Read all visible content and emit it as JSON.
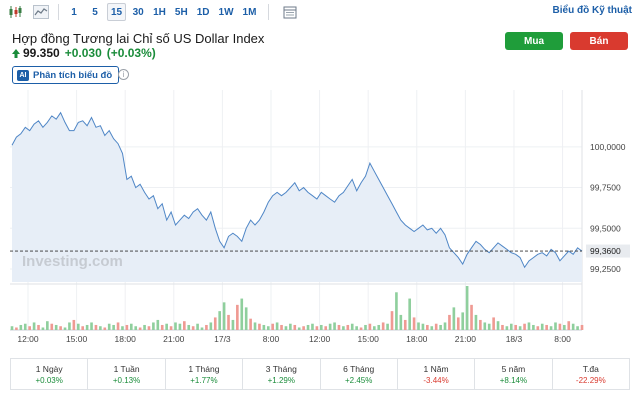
{
  "toolbar": {
    "timeframes": [
      "1",
      "5",
      "15",
      "30",
      "1H",
      "5H",
      "1D",
      "1W",
      "1M"
    ],
    "active_timeframe": "15",
    "tech_chart_link": "Biểu đồ Kỹ thuật"
  },
  "header": {
    "title": "Hợp đồng Tương lai Chỉ số US Dollar Index",
    "price": "99.350",
    "change": "+0.030",
    "change_pct": "(+0.03%)",
    "buy_label": "Mua",
    "sell_label": "Bán",
    "analysis_badge": "AI",
    "analysis_label": "Phân tích biểu đồ",
    "info_glyph": "i"
  },
  "colors": {
    "up": "#1a8c3a",
    "down": "#d93a2f",
    "line": "#4f86c6",
    "area": "#e7eef7",
    "accent": "#1d5fa8"
  },
  "chart_data": {
    "type": "area",
    "watermark": "Investing.com",
    "x_tick_labels": [
      "12:00",
      "15:00",
      "18:00",
      "21:00",
      "17/3",
      "8:00",
      "12:00",
      "15:00",
      "18:00",
      "21:00",
      "18/3",
      "8:00"
    ],
    "y_tick_labels": [
      "100,0000",
      "99,7500",
      "99,5000",
      "99,2500"
    ],
    "ylim": [
      99.17,
      100.3
    ],
    "last_value_label": "99,3600",
    "last_value": 99.36,
    "grid": true,
    "price": [
      100.01,
      100.06,
      100.08,
      100.12,
      100.1,
      100.14,
      100.16,
      100.12,
      100.15,
      100.19,
      100.17,
      100.21,
      100.15,
      100.1,
      100.1,
      100.15,
      100.16,
      100.13,
      100.18,
      100.12,
      100.13,
      100.07,
      100.1,
      100.05,
      100.02,
      99.96,
      99.8,
      99.82,
      99.75,
      99.77,
      99.72,
      99.68,
      99.7,
      99.62,
      99.65,
      99.55,
      99.6,
      99.52,
      99.55,
      99.58,
      99.56,
      99.6,
      99.62,
      99.58,
      99.55,
      99.6,
      99.5,
      99.42,
      99.38,
      99.45,
      99.47,
      99.45,
      99.42,
      99.5,
      99.55,
      99.52,
      99.55,
      99.6,
      99.66,
      99.7,
      99.72,
      99.7,
      99.72,
      99.75,
      99.78,
      99.73,
      99.75,
      99.72,
      99.7,
      99.68,
      99.72,
      99.7,
      99.68,
      99.66,
      99.7,
      99.72,
      99.76,
      99.8,
      99.73,
      99.78,
      99.82,
      99.9,
      99.85,
      99.8,
      99.75,
      99.7,
      99.65,
      99.6,
      99.55,
      99.52,
      99.5,
      99.48,
      99.5,
      99.52,
      99.49,
      99.5,
      99.47,
      99.5,
      99.46,
      99.38,
      99.35,
      99.32,
      99.28,
      99.34,
      99.38,
      99.42,
      99.4,
      99.37,
      99.35,
      99.38,
      99.41,
      99.39,
      99.37,
      99.35,
      99.34,
      99.32,
      99.26,
      99.3,
      99.32,
      99.34,
      99.35,
      99.33,
      99.37,
      99.35,
      99.3,
      99.33,
      99.36,
      99.34,
      99.38,
      99.36
    ],
    "volume": [
      3,
      2,
      4,
      5,
      3,
      6,
      4,
      2,
      7,
      5,
      4,
      3,
      2,
      6,
      8,
      5,
      3,
      4,
      6,
      4,
      3,
      2,
      5,
      4,
      6,
      3,
      4,
      5,
      3,
      2,
      4,
      3,
      6,
      8,
      4,
      5,
      3,
      6,
      5,
      7,
      4,
      3,
      5,
      2,
      4,
      6,
      10,
      15,
      22,
      12,
      8,
      20,
      25,
      18,
      9,
      6,
      5,
      4,
      3,
      5,
      6,
      4,
      3,
      5,
      4,
      2,
      3,
      4,
      5,
      3,
      4,
      3,
      5,
      6,
      4,
      3,
      4,
      5,
      3,
      2,
      4,
      5,
      3,
      4,
      6,
      5,
      15,
      30,
      12,
      8,
      25,
      10,
      6,
      5,
      4,
      3,
      5,
      4,
      6,
      12,
      18,
      10,
      14,
      35,
      20,
      12,
      8,
      6,
      5,
      10,
      7,
      4,
      3,
      5,
      4,
      3,
      5,
      6,
      4,
      3,
      5,
      4,
      3,
      6,
      5,
      4,
      7,
      5,
      3,
      4
    ],
    "volume_up": [
      1,
      0,
      1,
      1,
      0,
      1,
      0,
      1,
      1,
      0,
      1,
      0,
      1,
      1,
      0,
      1,
      0,
      1,
      1,
      0,
      1,
      0,
      1,
      1,
      0,
      1,
      0,
      1,
      1,
      0,
      1,
      0,
      1,
      1,
      0,
      1,
      0,
      1,
      1,
      0,
      1,
      0,
      1,
      1,
      0,
      1,
      0,
      1,
      1,
      0,
      1,
      0,
      1,
      1,
      0,
      1,
      0,
      1,
      1,
      0,
      1,
      0,
      1,
      1,
      0,
      1,
      0,
      1,
      1,
      0,
      1,
      0,
      1,
      1,
      0,
      1,
      0,
      1,
      1,
      0,
      1,
      0,
      1,
      1,
      0,
      1,
      0,
      1,
      1,
      0,
      1,
      0,
      1,
      1,
      0,
      1,
      0,
      1,
      1,
      0,
      1,
      0,
      1,
      1,
      0,
      1,
      0,
      1,
      1,
      0,
      1,
      0,
      1,
      1,
      0,
      1,
      0,
      1,
      1,
      0,
      1,
      0,
      1,
      1,
      0,
      1,
      0,
      1,
      1,
      0
    ]
  },
  "performance": [
    {
      "label": "1 Ngày",
      "value": "+0.03%",
      "dir": "up"
    },
    {
      "label": "1 Tuần",
      "value": "+0.13%",
      "dir": "up"
    },
    {
      "label": "1 Tháng",
      "value": "+1.77%",
      "dir": "up"
    },
    {
      "label": "3 Tháng",
      "value": "+1.29%",
      "dir": "up"
    },
    {
      "label": "6 Tháng",
      "value": "+2.45%",
      "dir": "up"
    },
    {
      "label": "1 Năm",
      "value": "-3.44%",
      "dir": "down"
    },
    {
      "label": "5 năm",
      "value": "+8.14%",
      "dir": "up"
    },
    {
      "label": "T.đa",
      "value": "-22.29%",
      "dir": "down"
    }
  ]
}
